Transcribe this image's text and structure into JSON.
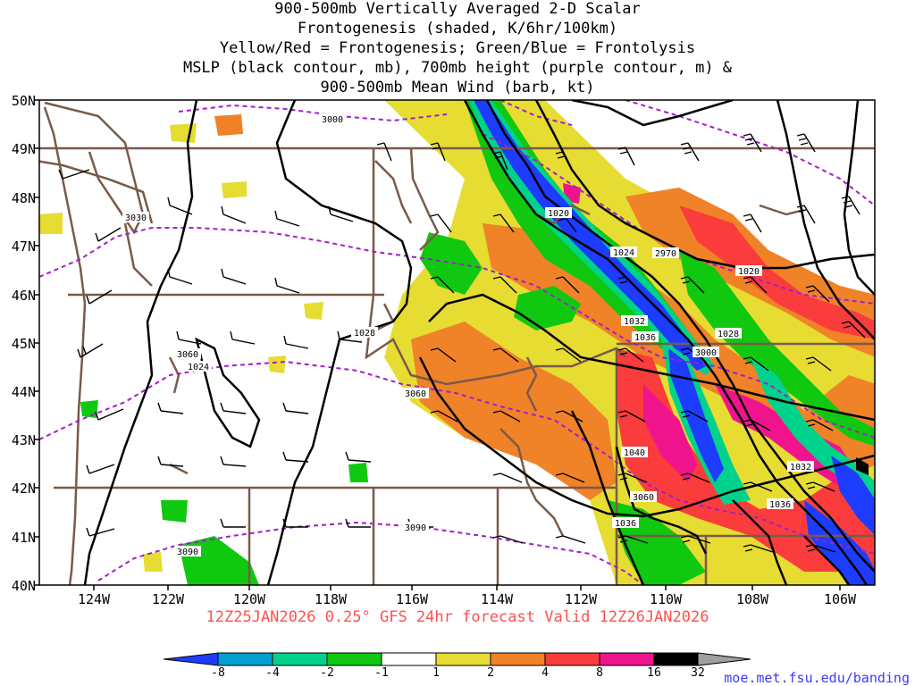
{
  "title_lines": [
    "900-500mb Vertically Averaged 2-D Scalar",
    "Frontogenesis (shaded, K/6hr/100km)",
    "Yellow/Red = Frontogenesis;  Green/Blue = Frontolysis",
    "MSLP (black contour, mb), 700mb height (purple contour, m) &",
    "900-500mb Mean Wind (barb, kt)"
  ],
  "lat_labels": [
    "50N",
    "49N",
    "48N",
    "47N",
    "46N",
    "45N",
    "44N",
    "43N",
    "42N",
    "41N",
    "40N"
  ],
  "lon_labels": [
    "124W",
    "122W",
    "120W",
    "118W",
    "116W",
    "114W",
    "112W",
    "110W",
    "108W",
    "106W"
  ],
  "valid_text": "12Z25JAN2026 0.25° GFS 24hr forecast Valid 12Z26JAN2026",
  "colorbar": {
    "ticks": [
      "-8",
      "-4",
      "-2",
      "-1",
      "1",
      "2",
      "4",
      "8",
      "16",
      "32"
    ],
    "colors": [
      "#1e3cff",
      "#00a0d2",
      "#00d28c",
      "#10c810",
      "#ffffff",
      "#e6dc32",
      "#f08228",
      "#fa3c3c",
      "#f0148c",
      "#000000",
      "#a0a0a0"
    ]
  },
  "credit": "moe.met.fsu.edu/banding",
  "map_labels": {
    "mslp": [
      "1020",
      "1024",
      "1028",
      "1032",
      "1036",
      "1040",
      "1020",
      "1028",
      "1032",
      "1036",
      "1036",
      "1024"
    ],
    "hgt": [
      "3000",
      "3030",
      "3060",
      "3090",
      "3060",
      "2970",
      "3000",
      "3060",
      "3090"
    ]
  }
}
